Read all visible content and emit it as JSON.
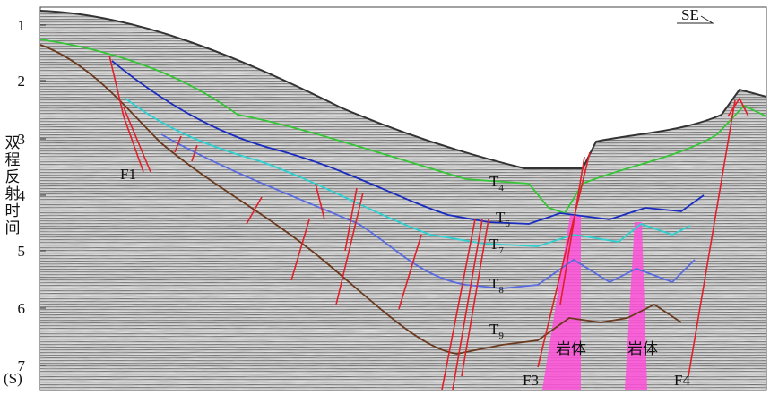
{
  "axis": {
    "title": "双程反射时间",
    "unit": "(S)",
    "ticks": [
      "1",
      "2",
      "3",
      "4",
      "5",
      "6",
      "7"
    ]
  },
  "direction": "SE",
  "horizons": [
    {
      "base": "T",
      "sub": "4"
    },
    {
      "base": "T",
      "sub": "6"
    },
    {
      "base": "T",
      "sub": "7"
    },
    {
      "base": "T",
      "sub": "8"
    },
    {
      "base": "T",
      "sub": "9"
    }
  ],
  "faults": [
    "F1",
    "F3",
    "F4"
  ],
  "bodies": [
    "岩体",
    "岩体"
  ]
}
